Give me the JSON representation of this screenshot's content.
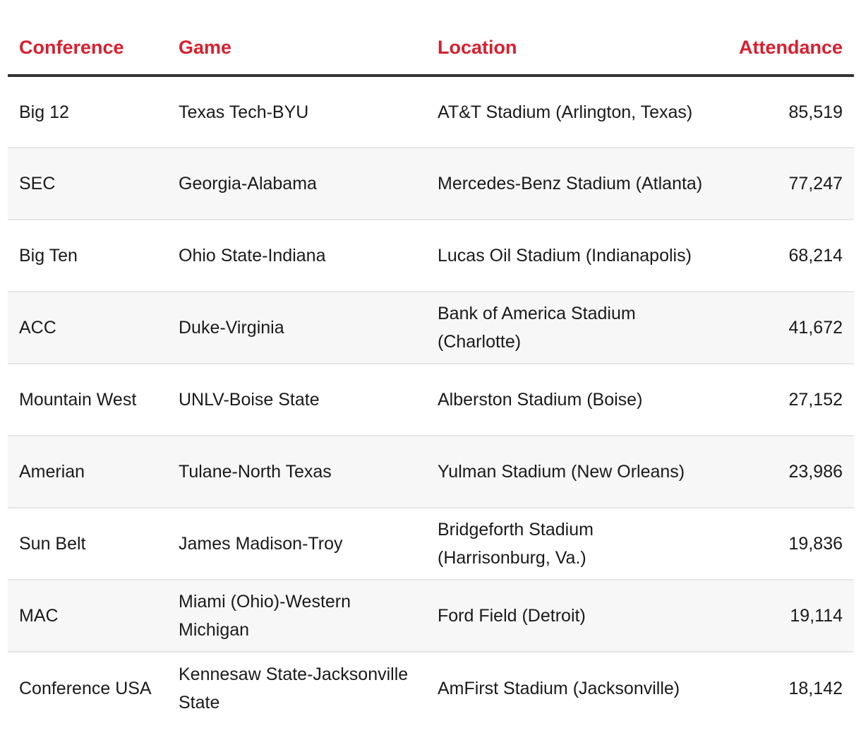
{
  "table": {
    "headers": [
      "Conference",
      "Game",
      "Location",
      "Attendance"
    ],
    "rows": [
      {
        "conference": "Big 12",
        "game": "Texas Tech-BYU",
        "location": "AT&T Stadium (Arlington, Texas)",
        "attendance": "85,519"
      },
      {
        "conference": "SEC",
        "game": "Georgia-Alabama",
        "location": "Mercedes-Benz Stadium (Atlanta)",
        "attendance": "77,247"
      },
      {
        "conference": "Big Ten",
        "game": "Ohio State-Indiana",
        "location": "Lucas Oil Stadium (Indianapolis)",
        "attendance": "68,214"
      },
      {
        "conference": "ACC",
        "game": "Duke-Virginia",
        "location": "Bank of America Stadium (Charlotte)",
        "attendance": "41,672"
      },
      {
        "conference": "Mountain West",
        "game": "UNLV-Boise State",
        "location": "Alberston Stadium (Boise)",
        "attendance": "27,152"
      },
      {
        "conference": "Amerian",
        "game": "Tulane-North Texas",
        "location": "Yulman Stadium (New Orleans)",
        "attendance": "23,986"
      },
      {
        "conference": "Sun Belt",
        "game": "James Madison-Troy",
        "location": "Bridgeforth Stadium (Harrisonburg, Va.)",
        "attendance": "19,836"
      },
      {
        "conference": "MAC",
        "game": "Miami (Ohio)-Western Michigan",
        "location": "Ford Field (Detroit)",
        "attendance": "19,114"
      },
      {
        "conference": "Conference USA",
        "game": "Kennesaw State-Jacksonville State",
        "location": "AmFirst Stadium (Jacksonville)",
        "attendance": "18,142"
      }
    ]
  },
  "colors": {
    "header_text": "#d6202f",
    "header_rule": "#333333",
    "row_stripe": "#f7f7f7",
    "row_divider": "#e6e6e6"
  }
}
